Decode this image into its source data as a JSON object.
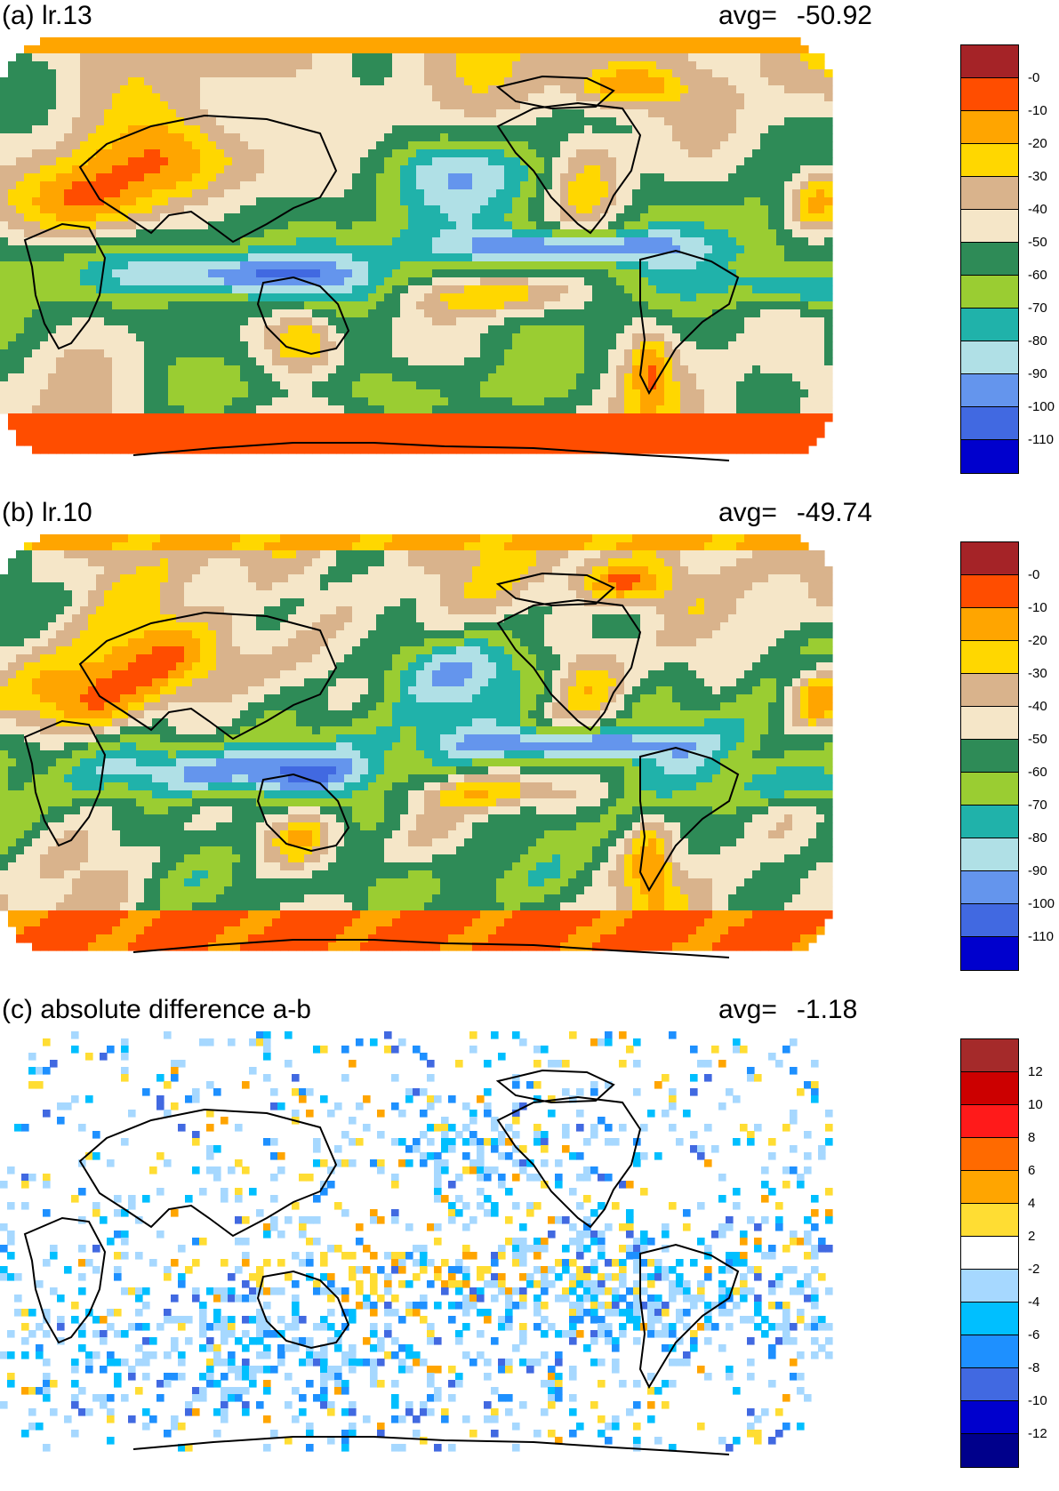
{
  "panels": [
    {
      "title": "(a) lr.13",
      "avg_label": "avg=",
      "avg_value": "-50.92",
      "colorbar": {
        "colors": [
          "#a52327",
          "#ff4d00",
          "#ffa500",
          "#ffd700",
          "#d9b38c",
          "#f5e6c8",
          "#2e8b57",
          "#9acd32",
          "#20b2aa",
          "#b0e0e6",
          "#6495ed",
          "#4169e1",
          "#0000cd"
        ],
        "labels": [
          "-0",
          "-10",
          "-20",
          "-30",
          "-40",
          "-50",
          "-60",
          "-70",
          "-80",
          "-90",
          "-100",
          "-110"
        ]
      }
    },
    {
      "title": "(b) lr.10",
      "avg_label": "avg=",
      "avg_value": "-49.74",
      "colorbar": {
        "colors": [
          "#a52327",
          "#ff4d00",
          "#ffa500",
          "#ffd700",
          "#d9b38c",
          "#f5e6c8",
          "#2e8b57",
          "#9acd32",
          "#20b2aa",
          "#b0e0e6",
          "#6495ed",
          "#4169e1",
          "#0000cd"
        ],
        "labels": [
          "-0",
          "-10",
          "-20",
          "-30",
          "-40",
          "-50",
          "-60",
          "-70",
          "-80",
          "-90",
          "-100",
          "-110"
        ]
      }
    },
    {
      "title": "(c) absolute difference a-b",
      "avg_label": "avg=",
      "avg_value": "-1.18",
      "colorbar": {
        "colors": [
          "#a52a2a",
          "#cc0000",
          "#ff1a1a",
          "#ff6a00",
          "#ffa500",
          "#ffdd33",
          "#ffffff",
          "#a6d8ff",
          "#00bfff",
          "#1e90ff",
          "#4169e1",
          "#0000cd",
          "#00008b"
        ],
        "labels": [
          "12",
          "10",
          "8",
          "6",
          "4",
          "2",
          "-2",
          "-4",
          "-6",
          "-8",
          "-10",
          "-12"
        ]
      }
    }
  ]
}
